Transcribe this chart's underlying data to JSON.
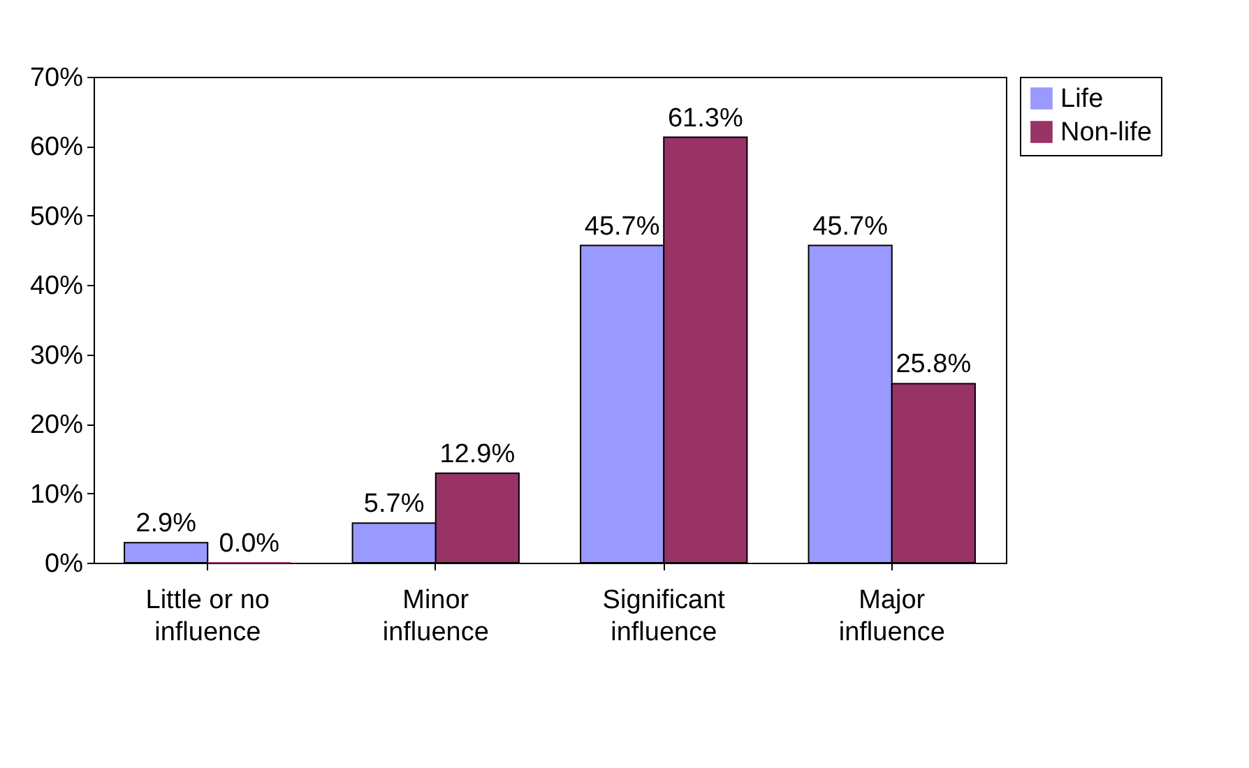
{
  "chart_data": {
    "type": "bar",
    "categories": [
      "Little or no influence",
      "Minor influence",
      "Significant influence",
      "Major influence"
    ],
    "series": [
      {
        "name": "Life",
        "color": "#9999ff",
        "values": [
          2.9,
          5.7,
          45.7,
          45.7
        ],
        "value_labels": [
          "2.9%",
          "5.7%",
          "45.7%",
          "45.7%"
        ]
      },
      {
        "name": "Non-life",
        "color": "#993366",
        "values": [
          0.0,
          12.9,
          61.3,
          25.8
        ],
        "value_labels": [
          "0.0%",
          "12.9%",
          "61.3%",
          "25.8%"
        ]
      }
    ],
    "ylim": [
      0,
      70
    ],
    "yticks": [
      {
        "value": 0,
        "label": "0%"
      },
      {
        "value": 10,
        "label": "10%"
      },
      {
        "value": 20,
        "label": "20%"
      },
      {
        "value": 30,
        "label": "30%"
      },
      {
        "value": 40,
        "label": "40%"
      },
      {
        "value": 50,
        "label": "50%"
      },
      {
        "value": 60,
        "label": "60%"
      },
      {
        "value": 70,
        "label": "70%"
      }
    ],
    "grid": false,
    "legend": "right"
  }
}
